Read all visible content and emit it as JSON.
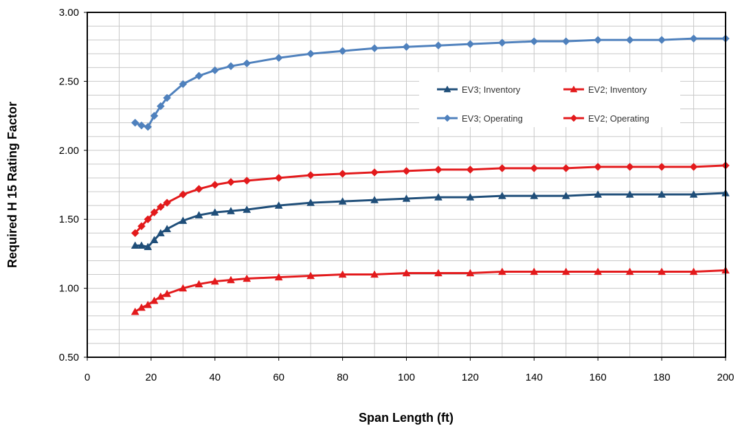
{
  "chart_data": {
    "type": "line",
    "title": "",
    "xlabel": "Span Length (ft)",
    "ylabel": "Required H 15 Rating Factor",
    "xlim": [
      0,
      200
    ],
    "ylim": [
      0.5,
      3.0
    ],
    "x_ticks": [
      0,
      20,
      40,
      60,
      80,
      100,
      120,
      140,
      160,
      180,
      200
    ],
    "y_ticks": [
      "0.50",
      "1.00",
      "1.50",
      "2.00",
      "2.50",
      "3.00"
    ],
    "grid": true,
    "legend_position": "upper-right-inside",
    "series": [
      {
        "name": "EV3; Inventory",
        "color": "#1F4E79",
        "marker": "triangle",
        "x": [
          15,
          17,
          19,
          21,
          23,
          25,
          30,
          35,
          40,
          45,
          50,
          60,
          70,
          80,
          90,
          100,
          110,
          120,
          130,
          140,
          150,
          160,
          170,
          180,
          190,
          200
        ],
        "y": [
          1.31,
          1.31,
          1.3,
          1.35,
          1.4,
          1.43,
          1.49,
          1.53,
          1.55,
          1.56,
          1.57,
          1.6,
          1.62,
          1.63,
          1.64,
          1.65,
          1.66,
          1.66,
          1.67,
          1.67,
          1.67,
          1.68,
          1.68,
          1.68,
          1.68,
          1.69
        ]
      },
      {
        "name": "EV2; Inventory",
        "color": "#E31A1C",
        "marker": "triangle",
        "x": [
          15,
          17,
          19,
          21,
          23,
          25,
          30,
          35,
          40,
          45,
          50,
          60,
          70,
          80,
          90,
          100,
          110,
          120,
          130,
          140,
          150,
          160,
          170,
          180,
          190,
          200
        ],
        "y": [
          0.83,
          0.86,
          0.88,
          0.91,
          0.94,
          0.96,
          1.0,
          1.03,
          1.05,
          1.06,
          1.07,
          1.08,
          1.09,
          1.1,
          1.1,
          1.11,
          1.11,
          1.11,
          1.12,
          1.12,
          1.12,
          1.12,
          1.12,
          1.12,
          1.12,
          1.13
        ]
      },
      {
        "name": "EV3; Operating",
        "color": "#4F81BD",
        "marker": "diamond",
        "x": [
          15,
          17,
          19,
          21,
          23,
          25,
          30,
          35,
          40,
          45,
          50,
          60,
          70,
          80,
          90,
          100,
          110,
          120,
          130,
          140,
          150,
          160,
          170,
          180,
          190,
          200
        ],
        "y": [
          2.2,
          2.18,
          2.17,
          2.25,
          2.32,
          2.38,
          2.48,
          2.54,
          2.58,
          2.61,
          2.63,
          2.67,
          2.7,
          2.72,
          2.74,
          2.75,
          2.76,
          2.77,
          2.78,
          2.79,
          2.79,
          2.8,
          2.8,
          2.8,
          2.81,
          2.81
        ]
      },
      {
        "name": "EV2; Operating",
        "color": "#E31A1C",
        "marker": "diamond",
        "x": [
          15,
          17,
          19,
          21,
          23,
          25,
          30,
          35,
          40,
          45,
          50,
          60,
          70,
          80,
          90,
          100,
          110,
          120,
          130,
          140,
          150,
          160,
          170,
          180,
          190,
          200
        ],
        "y": [
          1.4,
          1.45,
          1.5,
          1.55,
          1.59,
          1.62,
          1.68,
          1.72,
          1.75,
          1.77,
          1.78,
          1.8,
          1.82,
          1.83,
          1.84,
          1.85,
          1.86,
          1.86,
          1.87,
          1.87,
          1.87,
          1.88,
          1.88,
          1.88,
          1.88,
          1.89
        ]
      }
    ]
  }
}
